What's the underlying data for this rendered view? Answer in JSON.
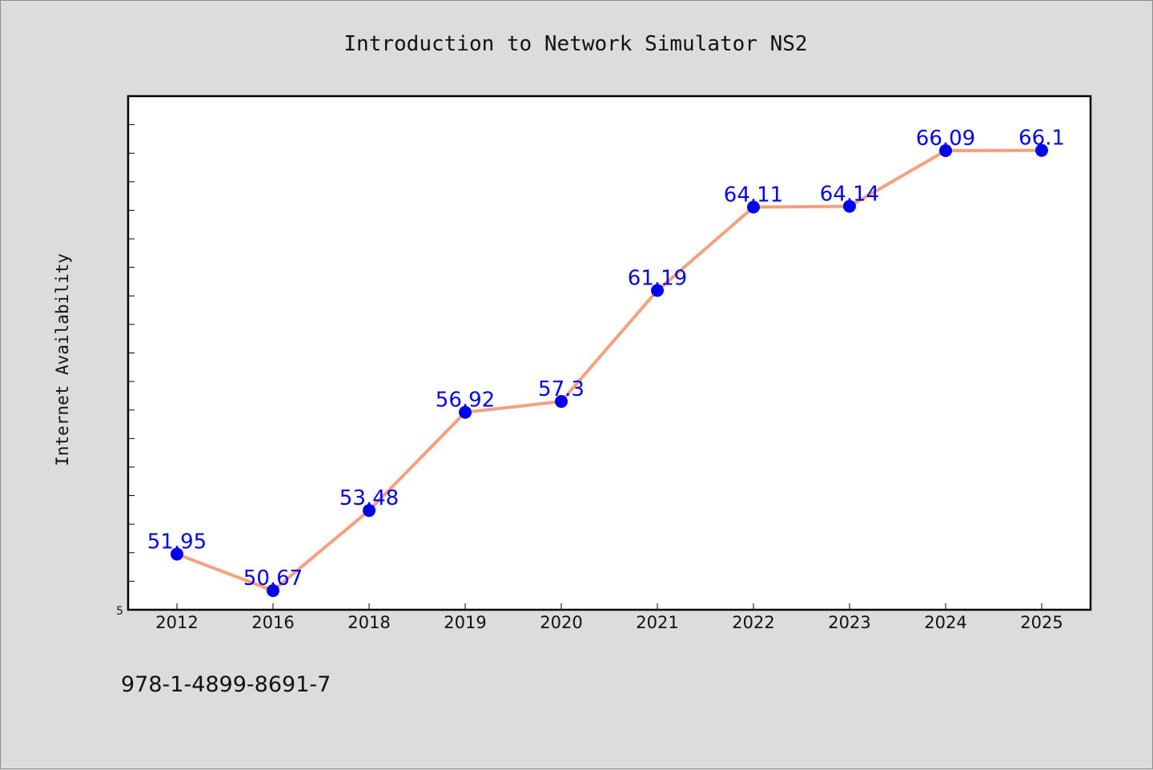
{
  "chart_data": {
    "type": "line",
    "title": "Introduction to Network Simulator NS2",
    "ylabel": "Internet Availability",
    "xlabel": "",
    "categories": [
      "2012",
      "2016",
      "2018",
      "2019",
      "2020",
      "2021",
      "2022",
      "2023",
      "2024",
      "2025"
    ],
    "series": [
      {
        "values": [
          51.95,
          50.67,
          53.48,
          56.92,
          57.3,
          61.19,
          64.11,
          64.14,
          66.09,
          66.1
        ],
        "data_labels": [
          "51.95",
          "50.67",
          "53.48",
          "56.92",
          "57.3",
          "61.19",
          "64.11",
          "64.14",
          "66.09",
          "66.1"
        ]
      }
    ],
    "ylim": [
      50,
      68
    ],
    "y_min_label": "5",
    "grid": false,
    "legend": "none",
    "colors": {
      "line": "#f5a07e",
      "marker": "#0000ee",
      "label": "#0000ee",
      "plot_bg": "#ffffff",
      "page_bg": "#dcdcdc",
      "axis": "#000000"
    }
  },
  "footer": {
    "isbn": "978-1-4899-8691-7"
  }
}
